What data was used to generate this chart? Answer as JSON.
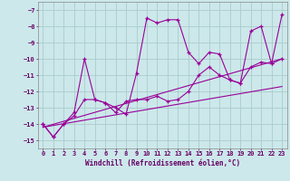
{
  "xlabel": "Windchill (Refroidissement éolien,°C)",
  "background_color": "#cce8ea",
  "grid_color": "#aacccc",
  "line_color": "#990099",
  "ylim": [
    -15.5,
    -6.5
  ],
  "xlim": [
    -0.5,
    23.5
  ],
  "yticks": [
    -15,
    -14,
    -13,
    -12,
    -11,
    -10,
    -9,
    -8,
    -7
  ],
  "xticks": [
    0,
    1,
    2,
    3,
    4,
    5,
    6,
    7,
    8,
    9,
    10,
    11,
    12,
    13,
    14,
    15,
    16,
    17,
    18,
    19,
    20,
    21,
    22,
    23
  ],
  "series": [
    {
      "x": [
        0,
        1,
        2,
        3,
        4,
        5,
        6,
        7,
        8,
        9,
        10,
        11,
        12,
        13,
        14,
        15,
        16,
        17,
        18,
        19,
        20,
        21,
        22,
        23
      ],
      "y": [
        -14.0,
        -14.8,
        -14.0,
        -13.3,
        -10.0,
        -12.5,
        -12.7,
        -13.0,
        -13.4,
        -10.9,
        -7.5,
        -7.8,
        -7.6,
        -7.6,
        -9.6,
        -10.3,
        -9.6,
        -9.7,
        -11.3,
        -11.5,
        -8.3,
        -8.0,
        -10.3,
        -7.3
      ]
    },
    {
      "x": [
        0,
        1,
        2,
        3,
        4,
        5,
        6,
        7,
        8,
        9,
        10,
        11,
        12,
        13,
        14,
        15,
        16,
        17,
        18,
        19,
        20,
        21,
        22,
        23
      ],
      "y": [
        -14.0,
        -14.8,
        -14.0,
        -13.5,
        -12.5,
        -12.5,
        -12.7,
        -13.3,
        -12.6,
        -12.5,
        -12.5,
        -12.3,
        -12.6,
        -12.5,
        -12.0,
        -11.0,
        -10.5,
        -11.0,
        -11.3,
        -11.5,
        -10.5,
        -10.2,
        -10.3,
        -10.0
      ]
    },
    {
      "x": [
        0,
        23
      ],
      "y": [
        -14.2,
        -10.0
      ]
    },
    {
      "x": [
        0,
        23
      ],
      "y": [
        -14.2,
        -11.7
      ]
    }
  ]
}
